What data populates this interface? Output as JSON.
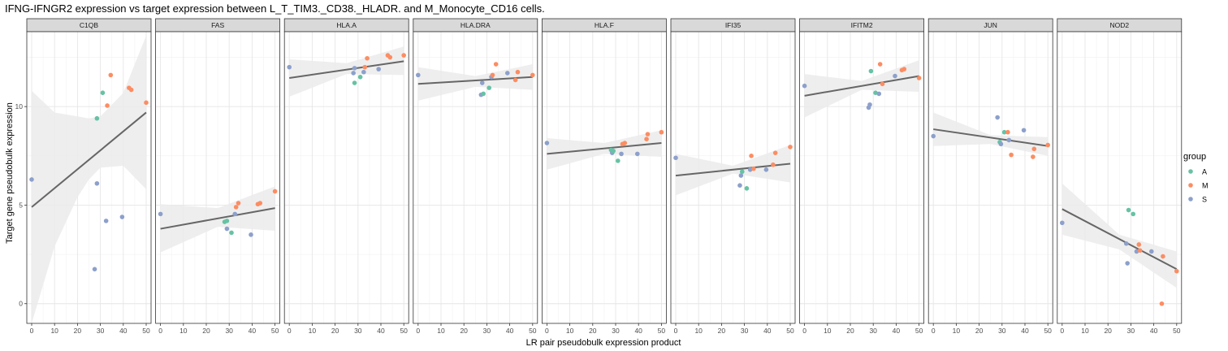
{
  "chart_data": {
    "type": "scatter",
    "title": "IFNG-IFNGR2 expression vs target expression between L_T_TIM3._CD38._HLADR. and M_Monocyte_CD16 cells.",
    "xlabel": "LR pair pseudobulk expression product",
    "ylabel": "Target gene pseudobulk expression",
    "xlim": [
      -2,
      52
    ],
    "ylim": [
      -1.0,
      13.8
    ],
    "x_ticks": [
      0,
      10,
      20,
      30,
      40,
      50
    ],
    "y_ticks": [
      0,
      5,
      10
    ],
    "grid": true,
    "legend": {
      "title": "group",
      "position": "right",
      "entries": [
        {
          "label": "A",
          "color": "#66c2a5"
        },
        {
          "label": "M",
          "color": "#fc8d62"
        },
        {
          "label": "S",
          "color": "#8da0cb"
        }
      ]
    },
    "trend_color": "#666666",
    "band_color": "#ebebeb",
    "panels": [
      {
        "gene": "C1QB",
        "fit": {
          "x": [
            0,
            50
          ],
          "y": [
            4.9,
            9.7
          ]
        },
        "band": {
          "x": [
            0,
            10,
            20,
            25,
            30,
            40,
            50
          ],
          "lo": [
            -1.0,
            2.9,
            5.4,
            6.3,
            6.9,
            7.0,
            5.8
          ],
          "hi": [
            10.8,
            9.7,
            9.5,
            9.4,
            9.5,
            10.7,
            13.6
          ]
        },
        "points": [
          {
            "x": 0,
            "y": 6.3,
            "g": "S"
          },
          {
            "x": 27.5,
            "y": 1.75,
            "g": "S"
          },
          {
            "x": 28.5,
            "y": 6.1,
            "g": "S"
          },
          {
            "x": 28.5,
            "y": 9.4,
            "g": "A"
          },
          {
            "x": 31,
            "y": 10.7,
            "g": "A"
          },
          {
            "x": 32.5,
            "y": 4.2,
            "g": "S"
          },
          {
            "x": 33,
            "y": 10.05,
            "g": "M"
          },
          {
            "x": 34.5,
            "y": 11.6,
            "g": "M"
          },
          {
            "x": 39.5,
            "y": 4.4,
            "g": "S"
          },
          {
            "x": 42.5,
            "y": 10.95,
            "g": "M"
          },
          {
            "x": 43.5,
            "y": 10.85,
            "g": "M"
          },
          {
            "x": 50,
            "y": 10.2,
            "g": "M"
          }
        ]
      },
      {
        "gene": "FAS",
        "fit": {
          "x": [
            0,
            50
          ],
          "y": [
            3.8,
            4.85
          ]
        },
        "band": {
          "x": [
            0,
            25,
            50
          ],
          "lo": [
            2.6,
            3.9,
            3.7
          ],
          "hi": [
            5.05,
            4.85,
            5.95
          ]
        },
        "points": [
          {
            "x": 0,
            "y": 4.55,
            "g": "S"
          },
          {
            "x": 28,
            "y": 4.15,
            "g": "A"
          },
          {
            "x": 29,
            "y": 4.2,
            "g": "A"
          },
          {
            "x": 29,
            "y": 3.8,
            "g": "S"
          },
          {
            "x": 31,
            "y": 3.6,
            "g": "A"
          },
          {
            "x": 32.5,
            "y": 4.55,
            "g": "S"
          },
          {
            "x": 33,
            "y": 4.9,
            "g": "M"
          },
          {
            "x": 34,
            "y": 5.1,
            "g": "M"
          },
          {
            "x": 39.5,
            "y": 3.5,
            "g": "S"
          },
          {
            "x": 42.5,
            "y": 5.05,
            "g": "M"
          },
          {
            "x": 43.5,
            "y": 5.1,
            "g": "M"
          },
          {
            "x": 50,
            "y": 5.7,
            "g": "M"
          }
        ]
      },
      {
        "gene": "HLA.A",
        "fit": {
          "x": [
            0,
            50
          ],
          "y": [
            11.45,
            12.3
          ]
        },
        "band": {
          "x": [
            0,
            25,
            50
          ],
          "lo": [
            10.5,
            11.65,
            11.6
          ],
          "hi": [
            12.4,
            12.2,
            13.05
          ]
        },
        "points": [
          {
            "x": 0,
            "y": 12.0,
            "g": "S"
          },
          {
            "x": 28,
            "y": 11.7,
            "g": "S"
          },
          {
            "x": 28.5,
            "y": 11.2,
            "g": "A"
          },
          {
            "x": 28.5,
            "y": 11.95,
            "g": "S"
          },
          {
            "x": 31,
            "y": 11.5,
            "g": "A"
          },
          {
            "x": 32.5,
            "y": 11.75,
            "g": "S"
          },
          {
            "x": 33,
            "y": 12.0,
            "g": "M"
          },
          {
            "x": 34,
            "y": 12.45,
            "g": "M"
          },
          {
            "x": 39,
            "y": 11.9,
            "g": "S"
          },
          {
            "x": 43,
            "y": 12.6,
            "g": "M"
          },
          {
            "x": 44,
            "y": 12.5,
            "g": "M"
          },
          {
            "x": 50,
            "y": 12.6,
            "g": "M"
          }
        ]
      },
      {
        "gene": "HLA.DRA",
        "fit": {
          "x": [
            0,
            50
          ],
          "y": [
            11.15,
            11.5
          ]
        },
        "band": {
          "x": [
            0,
            25,
            50
          ],
          "lo": [
            10.3,
            11.0,
            10.85
          ],
          "hi": [
            12.0,
            11.55,
            12.15
          ]
        },
        "points": [
          {
            "x": 0,
            "y": 11.6,
            "g": "S"
          },
          {
            "x": 27.5,
            "y": 10.6,
            "g": "S"
          },
          {
            "x": 28,
            "y": 11.2,
            "g": "S"
          },
          {
            "x": 28.5,
            "y": 10.65,
            "g": "A"
          },
          {
            "x": 31,
            "y": 10.95,
            "g": "A"
          },
          {
            "x": 32,
            "y": 11.5,
            "g": "S"
          },
          {
            "x": 32.5,
            "y": 11.6,
            "g": "M"
          },
          {
            "x": 34,
            "y": 12.15,
            "g": "M"
          },
          {
            "x": 39,
            "y": 11.7,
            "g": "S"
          },
          {
            "x": 42.5,
            "y": 11.35,
            "g": "M"
          },
          {
            "x": 43.5,
            "y": 11.75,
            "g": "M"
          },
          {
            "x": 50,
            "y": 11.6,
            "g": "M"
          }
        ]
      },
      {
        "gene": "HLA.F",
        "fit": {
          "x": [
            0,
            50
          ],
          "y": [
            7.6,
            8.15
          ]
        },
        "band": {
          "x": [
            0,
            25,
            50
          ],
          "lo": [
            6.8,
            7.6,
            7.45
          ],
          "hi": [
            8.4,
            8.15,
            8.8
          ]
        },
        "points": [
          {
            "x": 0,
            "y": 8.15,
            "g": "S"
          },
          {
            "x": 28,
            "y": 7.8,
            "g": "A"
          },
          {
            "x": 28.5,
            "y": 7.65,
            "g": "S"
          },
          {
            "x": 29,
            "y": 7.75,
            "g": "A"
          },
          {
            "x": 31,
            "y": 7.25,
            "g": "A"
          },
          {
            "x": 32.5,
            "y": 7.6,
            "g": "S"
          },
          {
            "x": 33,
            "y": 8.1,
            "g": "M"
          },
          {
            "x": 34,
            "y": 8.15,
            "g": "M"
          },
          {
            "x": 39.5,
            "y": 7.6,
            "g": "S"
          },
          {
            "x": 43.5,
            "y": 8.35,
            "g": "M"
          },
          {
            "x": 44,
            "y": 8.6,
            "g": "M"
          },
          {
            "x": 50,
            "y": 8.7,
            "g": "M"
          }
        ]
      },
      {
        "gene": "IFI35",
        "fit": {
          "x": [
            0,
            50
          ],
          "y": [
            6.5,
            7.1
          ]
        },
        "band": {
          "x": [
            0,
            25,
            50
          ],
          "lo": [
            5.5,
            6.6,
            6.15
          ],
          "hi": [
            7.6,
            7.0,
            8.05
          ]
        },
        "points": [
          {
            "x": 0,
            "y": 7.4,
            "g": "S"
          },
          {
            "x": 28,
            "y": 6.0,
            "g": "S"
          },
          {
            "x": 28.5,
            "y": 6.5,
            "g": "S"
          },
          {
            "x": 29,
            "y": 6.7,
            "g": "A"
          },
          {
            "x": 31,
            "y": 5.85,
            "g": "A"
          },
          {
            "x": 32.5,
            "y": 6.8,
            "g": "S"
          },
          {
            "x": 33,
            "y": 7.5,
            "g": "M"
          },
          {
            "x": 34,
            "y": 6.85,
            "g": "M"
          },
          {
            "x": 39.5,
            "y": 6.8,
            "g": "S"
          },
          {
            "x": 42.5,
            "y": 7.05,
            "g": "M"
          },
          {
            "x": 43.5,
            "y": 7.65,
            "g": "M"
          },
          {
            "x": 50,
            "y": 7.95,
            "g": "M"
          }
        ]
      },
      {
        "gene": "IFITM2",
        "fit": {
          "x": [
            0,
            50
          ],
          "y": [
            10.55,
            11.55
          ]
        },
        "band": {
          "x": [
            0,
            25,
            50
          ],
          "lo": [
            9.45,
            10.85,
            10.75
          ],
          "hi": [
            11.65,
            11.3,
            12.35
          ]
        },
        "points": [
          {
            "x": 0,
            "y": 11.05,
            "g": "S"
          },
          {
            "x": 28,
            "y": 9.95,
            "g": "S"
          },
          {
            "x": 28.5,
            "y": 10.1,
            "g": "S"
          },
          {
            "x": 29,
            "y": 11.8,
            "g": "A"
          },
          {
            "x": 31,
            "y": 10.7,
            "g": "A"
          },
          {
            "x": 32.5,
            "y": 10.65,
            "g": "S"
          },
          {
            "x": 33,
            "y": 12.15,
            "g": "M"
          },
          {
            "x": 34,
            "y": 11.15,
            "g": "M"
          },
          {
            "x": 39.5,
            "y": 11.55,
            "g": "S"
          },
          {
            "x": 42.5,
            "y": 11.85,
            "g": "M"
          },
          {
            "x": 43.5,
            "y": 11.9,
            "g": "M"
          },
          {
            "x": 50,
            "y": 11.45,
            "g": "M"
          }
        ]
      },
      {
        "gene": "JUN",
        "fit": {
          "x": [
            0,
            50
          ],
          "y": [
            8.85,
            8.0
          ]
        },
        "band": {
          "x": [
            0,
            25,
            50
          ],
          "lo": [
            8.0,
            8.1,
            7.5
          ],
          "hi": [
            9.7,
            8.55,
            8.45
          ]
        },
        "points": [
          {
            "x": 0,
            "y": 8.5,
            "g": "S"
          },
          {
            "x": 28,
            "y": 9.45,
            "g": "S"
          },
          {
            "x": 29,
            "y": 8.2,
            "g": "A"
          },
          {
            "x": 29.5,
            "y": 8.1,
            "g": "S"
          },
          {
            "x": 31,
            "y": 8.7,
            "g": "A"
          },
          {
            "x": 32.5,
            "y": 8.7,
            "g": "M"
          },
          {
            "x": 33,
            "y": 8.3,
            "g": "S"
          },
          {
            "x": 34,
            "y": 7.55,
            "g": "M"
          },
          {
            "x": 39.5,
            "y": 8.8,
            "g": "S"
          },
          {
            "x": 43.5,
            "y": 7.45,
            "g": "M"
          },
          {
            "x": 44,
            "y": 7.85,
            "g": "M"
          },
          {
            "x": 50,
            "y": 8.05,
            "g": "M"
          }
        ]
      },
      {
        "gene": "NOD2",
        "fit": {
          "x": [
            0,
            50
          ],
          "y": [
            4.8,
            1.75
          ]
        },
        "band": {
          "x": [
            0,
            25,
            50
          ],
          "lo": [
            3.5,
            2.75,
            0.8
          ],
          "hi": [
            6.1,
            3.5,
            2.65
          ]
        },
        "points": [
          {
            "x": 0,
            "y": 4.1,
            "g": "S"
          },
          {
            "x": 28,
            "y": 3.05,
            "g": "S"
          },
          {
            "x": 28.5,
            "y": 2.05,
            "g": "S"
          },
          {
            "x": 29,
            "y": 4.75,
            "g": "A"
          },
          {
            "x": 31,
            "y": 4.55,
            "g": "A"
          },
          {
            "x": 32.5,
            "y": 2.65,
            "g": "S"
          },
          {
            "x": 33.5,
            "y": 3.0,
            "g": "M"
          },
          {
            "x": 34,
            "y": 2.7,
            "g": "M"
          },
          {
            "x": 39,
            "y": 2.65,
            "g": "S"
          },
          {
            "x": 43.5,
            "y": 0.0,
            "g": "M"
          },
          {
            "x": 44,
            "y": 2.4,
            "g": "M"
          },
          {
            "x": 50,
            "y": 1.65,
            "g": "M"
          }
        ]
      }
    ]
  }
}
